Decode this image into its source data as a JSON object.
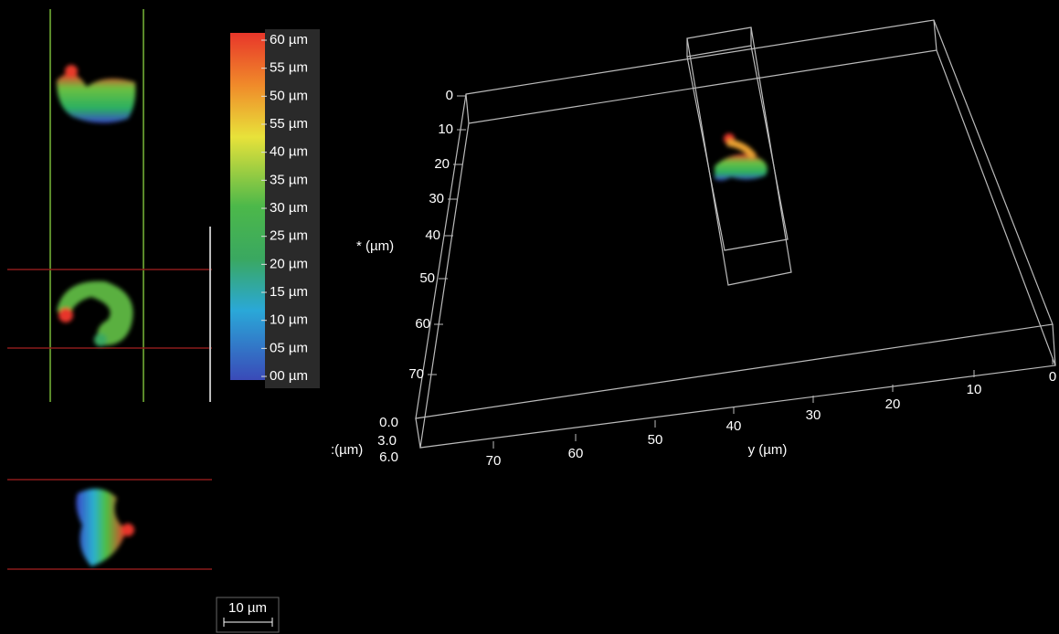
{
  "colorbar": {
    "labels": [
      "60 µm",
      "55 µm",
      "50 µm",
      "55 µm",
      "40 µm",
      "35 µm",
      "30 µm",
      "25 µm",
      "20 µm",
      "15 µm",
      "10 µm",
      "05 µm",
      "00 µm"
    ]
  },
  "scale_bar": {
    "label": "10 µm"
  },
  "volume": {
    "x_axis": {
      "label": "* (µm)",
      "ticks": [
        "0",
        "10",
        "20",
        "30",
        "40",
        "50",
        "60",
        "70"
      ]
    },
    "y_axis": {
      "label": "y (µm)",
      "ticks": [
        "70",
        "60",
        "50",
        "40",
        "30",
        "20",
        "10",
        "0"
      ]
    },
    "z_axis": {
      "label": ":(µm)",
      "ticks": [
        "0.0",
        "3.0",
        "6.0"
      ]
    }
  }
}
